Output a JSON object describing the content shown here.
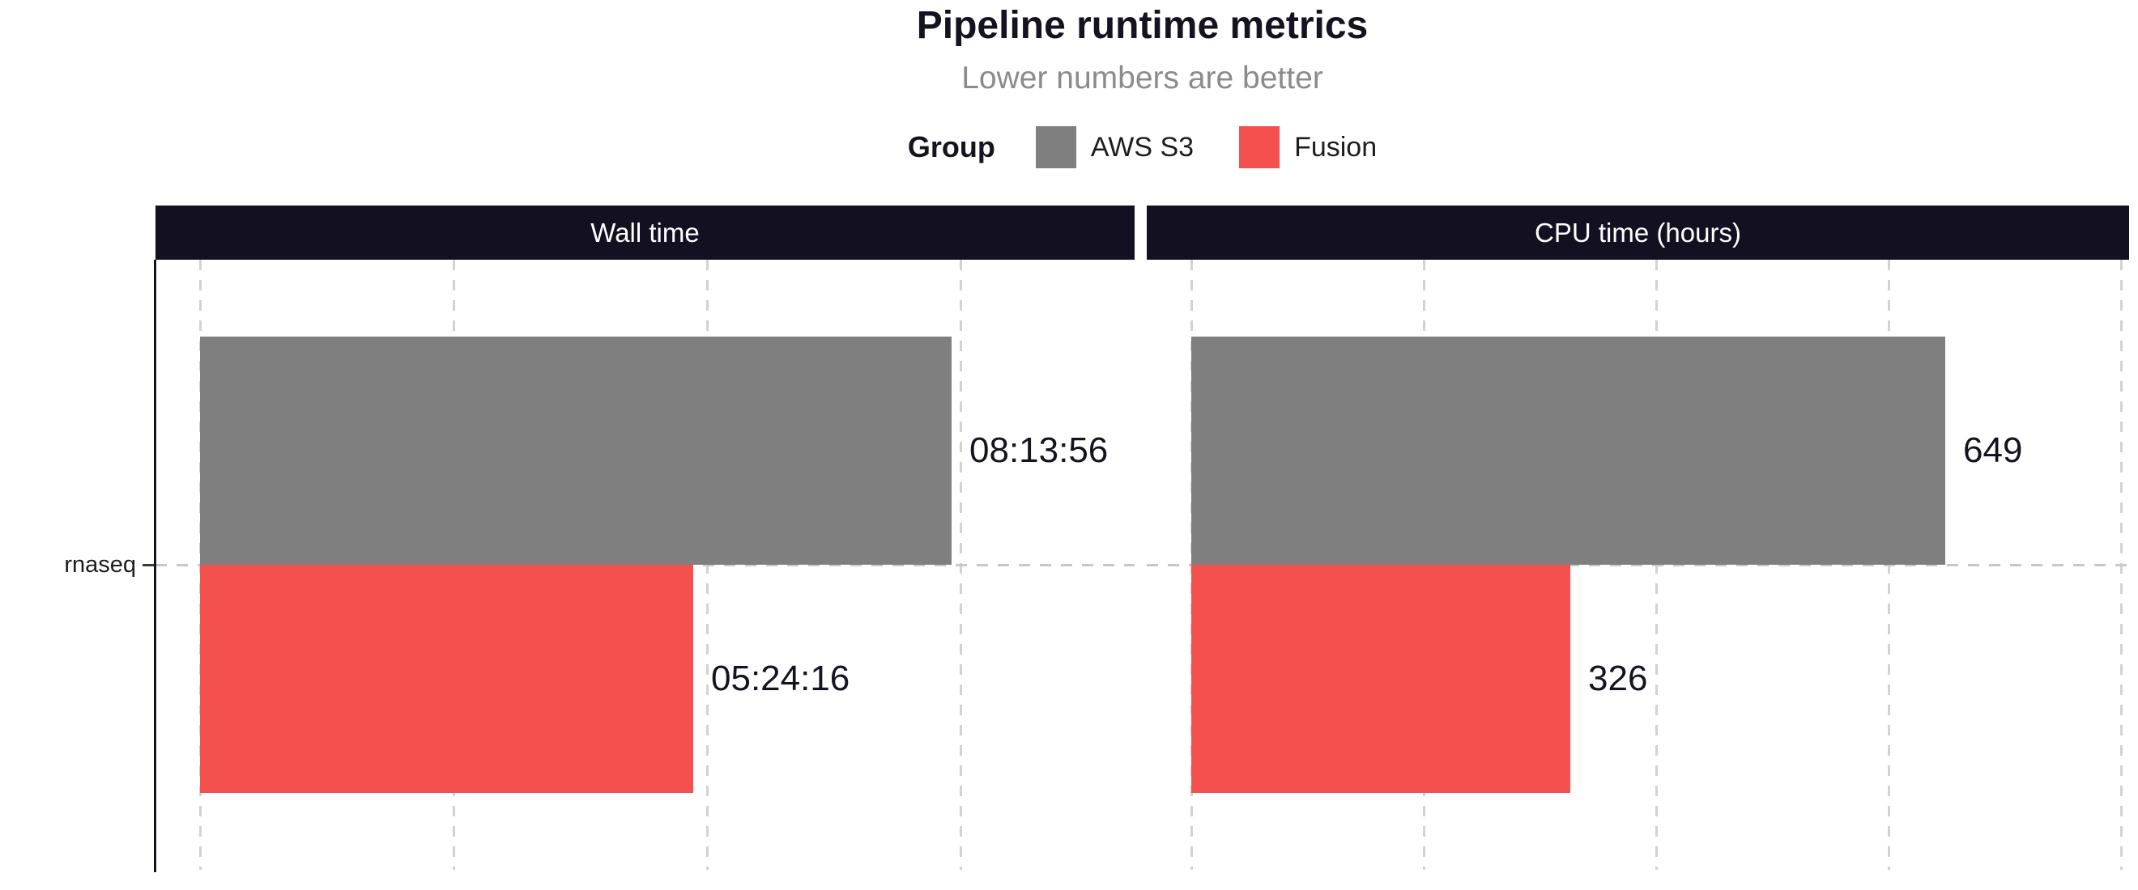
{
  "title": "Pipeline runtime metrics",
  "subtitle": "Lower numbers are better",
  "legend": {
    "label": "Group",
    "items": [
      {
        "name": "AWS S3",
        "color": "#7f7f7f"
      },
      {
        "name": "Fusion",
        "color": "#f4504e"
      }
    ]
  },
  "y_axis": {
    "category": "rnaseq"
  },
  "colors": {
    "strip_background": "#131022",
    "strip_text": "#ffffff",
    "aws_s3": "#7f7f7f",
    "fusion": "#f4504e",
    "title_text": "#16121f",
    "subtitle_text": "#8b8b8b",
    "gridline": "#d2d2d2"
  },
  "chart_data": {
    "type": "bar",
    "orientation": "horizontal",
    "title": "Pipeline runtime metrics",
    "subtitle": "Lower numbers are better",
    "categories": [
      "rnaseq"
    ],
    "legend_position": "top",
    "grid": "dashed-vertical",
    "panels": [
      {
        "title": "Wall time",
        "axis": {
          "min": 0,
          "gridline_step": 10000,
          "gridline_count": 4
        },
        "series": [
          {
            "name": "AWS S3",
            "label": "08:13:56",
            "value": 29636,
            "color": "#7f7f7f"
          },
          {
            "name": "Fusion",
            "label": "05:24:16",
            "value": 19456,
            "color": "#f4504e"
          }
        ]
      },
      {
        "title": "CPU time (hours)",
        "axis": {
          "min": 0,
          "gridline_step": 200,
          "gridline_count": 5
        },
        "series": [
          {
            "name": "AWS S3",
            "label": "649",
            "value": 649,
            "color": "#7f7f7f"
          },
          {
            "name": "Fusion",
            "label": "326",
            "value": 326,
            "color": "#f4504e"
          }
        ]
      }
    ]
  }
}
